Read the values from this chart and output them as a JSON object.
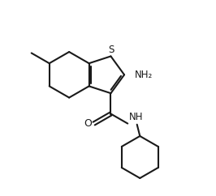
{
  "background": "#ffffff",
  "line_color": "#1a1a1a",
  "line_width": 1.5,
  "text_color": "#1a1a1a",
  "font_size": 8.5,
  "figsize": [
    2.66,
    2.42
  ],
  "dpi": 100,
  "xlim": [
    0,
    10
  ],
  "ylim": [
    0,
    10
  ],
  "S_label": "S",
  "NH2_label": "NH₂",
  "NH_label": "NH",
  "O_label": "O"
}
